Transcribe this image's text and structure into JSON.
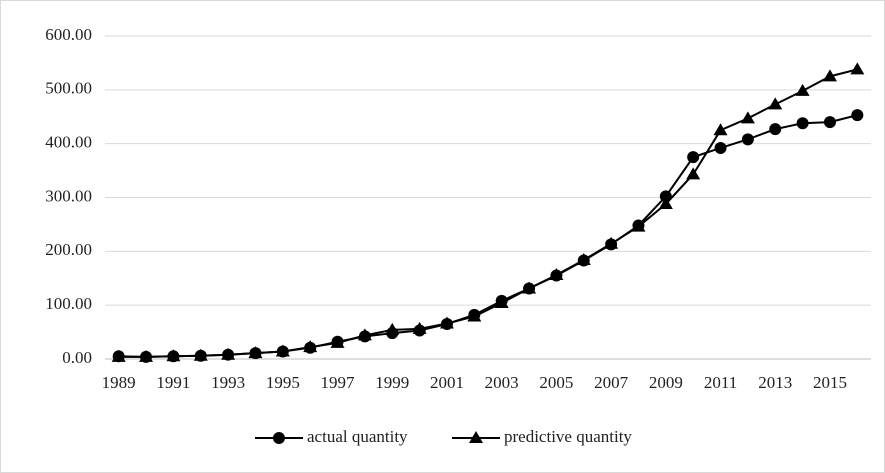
{
  "chart_data": {
    "type": "line",
    "categories": [
      "1989",
      null,
      "1991",
      null,
      "1993",
      null,
      "1995",
      null,
      "1997",
      null,
      "1999",
      null,
      "2001",
      null,
      "2003",
      null,
      "2005",
      null,
      "2007",
      null,
      "2009",
      null,
      "2011",
      null,
      "2013",
      null,
      "2015",
      null
    ],
    "series": [
      {
        "name": "actual quantity",
        "color": "#000000",
        "marker": "circle",
        "values": [
          5,
          4,
          5,
          6,
          8,
          11,
          14,
          21,
          32,
          42,
          48,
          53,
          65,
          82,
          108,
          131,
          155,
          183,
          213,
          248,
          302,
          375,
          392,
          408,
          427,
          438,
          440,
          453
        ]
      },
      {
        "name": "predictive quantity",
        "color": "#000000",
        "marker": "triangle",
        "values": [
          4,
          4,
          5,
          6,
          8,
          11,
          14,
          22,
          30,
          44,
          54,
          56,
          66,
          79,
          104,
          131,
          156,
          184,
          214,
          246,
          288,
          343,
          425,
          447,
          473,
          498,
          525,
          538
        ]
      }
    ],
    "ylim": [
      0,
      600
    ],
    "yticks": [
      {
        "value": 0,
        "label": "0.00"
      },
      {
        "value": 100,
        "label": "100.00"
      },
      {
        "value": 200,
        "label": "200.00"
      },
      {
        "value": 300,
        "label": "300.00"
      },
      {
        "value": 400,
        "label": "400.00"
      },
      {
        "value": 500,
        "label": "500.00"
      },
      {
        "value": 600,
        "label": "600.00"
      }
    ],
    "grid": true,
    "legend": "bottom"
  }
}
